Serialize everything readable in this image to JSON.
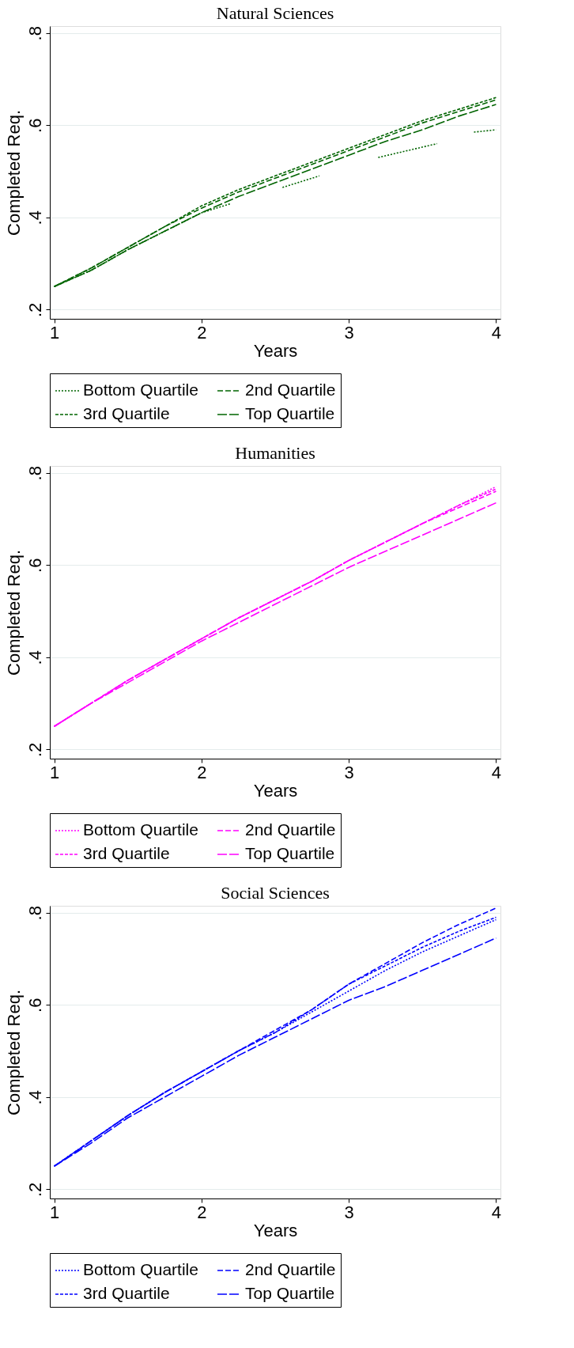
{
  "chart_data": [
    {
      "type": "line",
      "title": "Natural Sciences",
      "xlabel": "Years",
      "ylabel": "Completed Req.",
      "x": [
        1,
        1.25,
        1.5,
        1.75,
        2,
        2.25,
        2.5,
        2.75,
        3,
        3.25,
        3.5,
        3.75,
        4
      ],
      "xlim": [
        0.97,
        4.03
      ],
      "xticks": [
        1,
        2,
        3,
        4
      ],
      "ylim": [
        0.18,
        0.815
      ],
      "yticks": [
        {
          "value": 0.2,
          "label": ".2"
        },
        {
          "value": 0.4,
          "label": ".4"
        },
        {
          "value": 0.6,
          "label": ".6"
        },
        {
          "value": 0.8,
          "label": ".8"
        }
      ],
      "grid": "y",
      "legend": "bottom",
      "series": [
        {
          "name": "Bottom Quartile",
          "color": "#006400",
          "line_style": "dotted",
          "x": [
            1,
            1.25,
            1.5,
            1.75,
            2,
            2.2,
            2.4,
            2.55,
            2.8,
            3.0,
            3.2,
            3.6,
            3.75,
            3.85,
            4
          ],
          "values": [
            0.25,
            0.285,
            0.33,
            0.37,
            0.41,
            0.43,
            null,
            0.465,
            0.49,
            null,
            0.53,
            0.56,
            null,
            0.585,
            0.59
          ]
        },
        {
          "name": "2nd Quartile",
          "color": "#006400",
          "line_style": "dashed",
          "values": [
            0.25,
            0.29,
            0.335,
            0.38,
            0.42,
            0.455,
            0.485,
            0.515,
            0.545,
            0.575,
            0.605,
            0.63,
            0.655
          ]
        },
        {
          "name": "3rd Quartile",
          "color": "#006400",
          "line_style": "dotted",
          "values": [
            0.25,
            0.29,
            0.335,
            0.38,
            0.425,
            0.46,
            0.49,
            0.52,
            0.55,
            0.58,
            0.61,
            0.635,
            0.66
          ]
        },
        {
          "name": "Top Quartile",
          "color": "#006400",
          "line_style": "dashed",
          "values": [
            0.25,
            0.285,
            0.33,
            0.37,
            0.41,
            0.445,
            0.475,
            0.505,
            0.535,
            0.565,
            0.59,
            0.62,
            0.645
          ]
        }
      ]
    },
    {
      "type": "line",
      "title": "Humanities",
      "xlabel": "Years",
      "ylabel": "Completed Req.",
      "x": [
        1,
        1.25,
        1.5,
        1.75,
        2,
        2.25,
        2.5,
        2.75,
        3,
        3.25,
        3.5,
        3.75,
        4
      ],
      "xlim": [
        0.97,
        4.03
      ],
      "xticks": [
        1,
        2,
        3,
        4
      ],
      "ylim": [
        0.18,
        0.815
      ],
      "yticks": [
        {
          "value": 0.2,
          "label": ".2"
        },
        {
          "value": 0.4,
          "label": ".4"
        },
        {
          "value": 0.6,
          "label": ".6"
        },
        {
          "value": 0.8,
          "label": ".8"
        }
      ],
      "grid": "y",
      "legend": "bottom",
      "series": [
        {
          "name": "Bottom Quartile",
          "color": "#ff00ff",
          "line_style": "dotted",
          "values": [
            0.25,
            0.3,
            0.35,
            0.395,
            0.44,
            0.485,
            0.525,
            0.565,
            0.61,
            0.65,
            0.69,
            0.73,
            0.77
          ]
        },
        {
          "name": "2nd Quartile",
          "color": "#ff00ff",
          "line_style": "dashed",
          "values": [
            0.25,
            0.3,
            0.35,
            0.395,
            0.44,
            0.485,
            0.525,
            0.565,
            0.61,
            0.65,
            0.69,
            0.725,
            0.76
          ]
        },
        {
          "name": "3rd Quartile",
          "color": "#ff00ff",
          "line_style": "dotted",
          "values": [
            0.25,
            0.3,
            0.35,
            0.395,
            0.44,
            0.485,
            0.525,
            0.565,
            0.61,
            0.65,
            0.69,
            0.73,
            0.765
          ]
        },
        {
          "name": "Top Quartile",
          "color": "#ff00ff",
          "line_style": "dashed",
          "values": [
            0.25,
            0.3,
            0.345,
            0.39,
            0.435,
            0.475,
            0.515,
            0.555,
            0.595,
            0.63,
            0.665,
            0.7,
            0.735
          ]
        }
      ]
    },
    {
      "type": "line",
      "title": "Social Sciences",
      "xlabel": "Years",
      "ylabel": "Completed Req.",
      "x": [
        1,
        1.25,
        1.5,
        1.75,
        2,
        2.25,
        2.5,
        2.75,
        3,
        3.25,
        3.5,
        3.75,
        4
      ],
      "xlim": [
        0.97,
        4.03
      ],
      "xticks": [
        1,
        2,
        3,
        4
      ],
      "ylim": [
        0.18,
        0.815
      ],
      "yticks": [
        {
          "value": 0.2,
          "label": ".2"
        },
        {
          "value": 0.4,
          "label": ".4"
        },
        {
          "value": 0.6,
          "label": ".6"
        },
        {
          "value": 0.8,
          "label": ".8"
        }
      ],
      "grid": "y",
      "legend": "bottom",
      "series": [
        {
          "name": "Bottom Quartile",
          "color": "#0000ff",
          "line_style": "dotted",
          "values": [
            0.25,
            0.305,
            0.36,
            0.41,
            0.455,
            0.5,
            0.54,
            0.585,
            0.63,
            0.675,
            0.715,
            0.75,
            0.785
          ]
        },
        {
          "name": "2nd Quartile",
          "color": "#0000ff",
          "line_style": "dashed",
          "values": [
            0.25,
            0.305,
            0.36,
            0.41,
            0.455,
            0.5,
            0.545,
            0.59,
            0.645,
            0.69,
            0.735,
            0.775,
            0.81
          ]
        },
        {
          "name": "3rd Quartile",
          "color": "#0000ff",
          "line_style": "dotted",
          "values": [
            0.25,
            0.305,
            0.36,
            0.41,
            0.455,
            0.5,
            0.54,
            0.59,
            0.645,
            0.685,
            0.725,
            0.76,
            0.79
          ]
        },
        {
          "name": "Top Quartile",
          "color": "#0000ff",
          "line_style": "dashed",
          "values": [
            0.25,
            0.3,
            0.355,
            0.4,
            0.445,
            0.49,
            0.53,
            0.57,
            0.61,
            0.64,
            0.675,
            0.71,
            0.745
          ]
        }
      ]
    }
  ]
}
